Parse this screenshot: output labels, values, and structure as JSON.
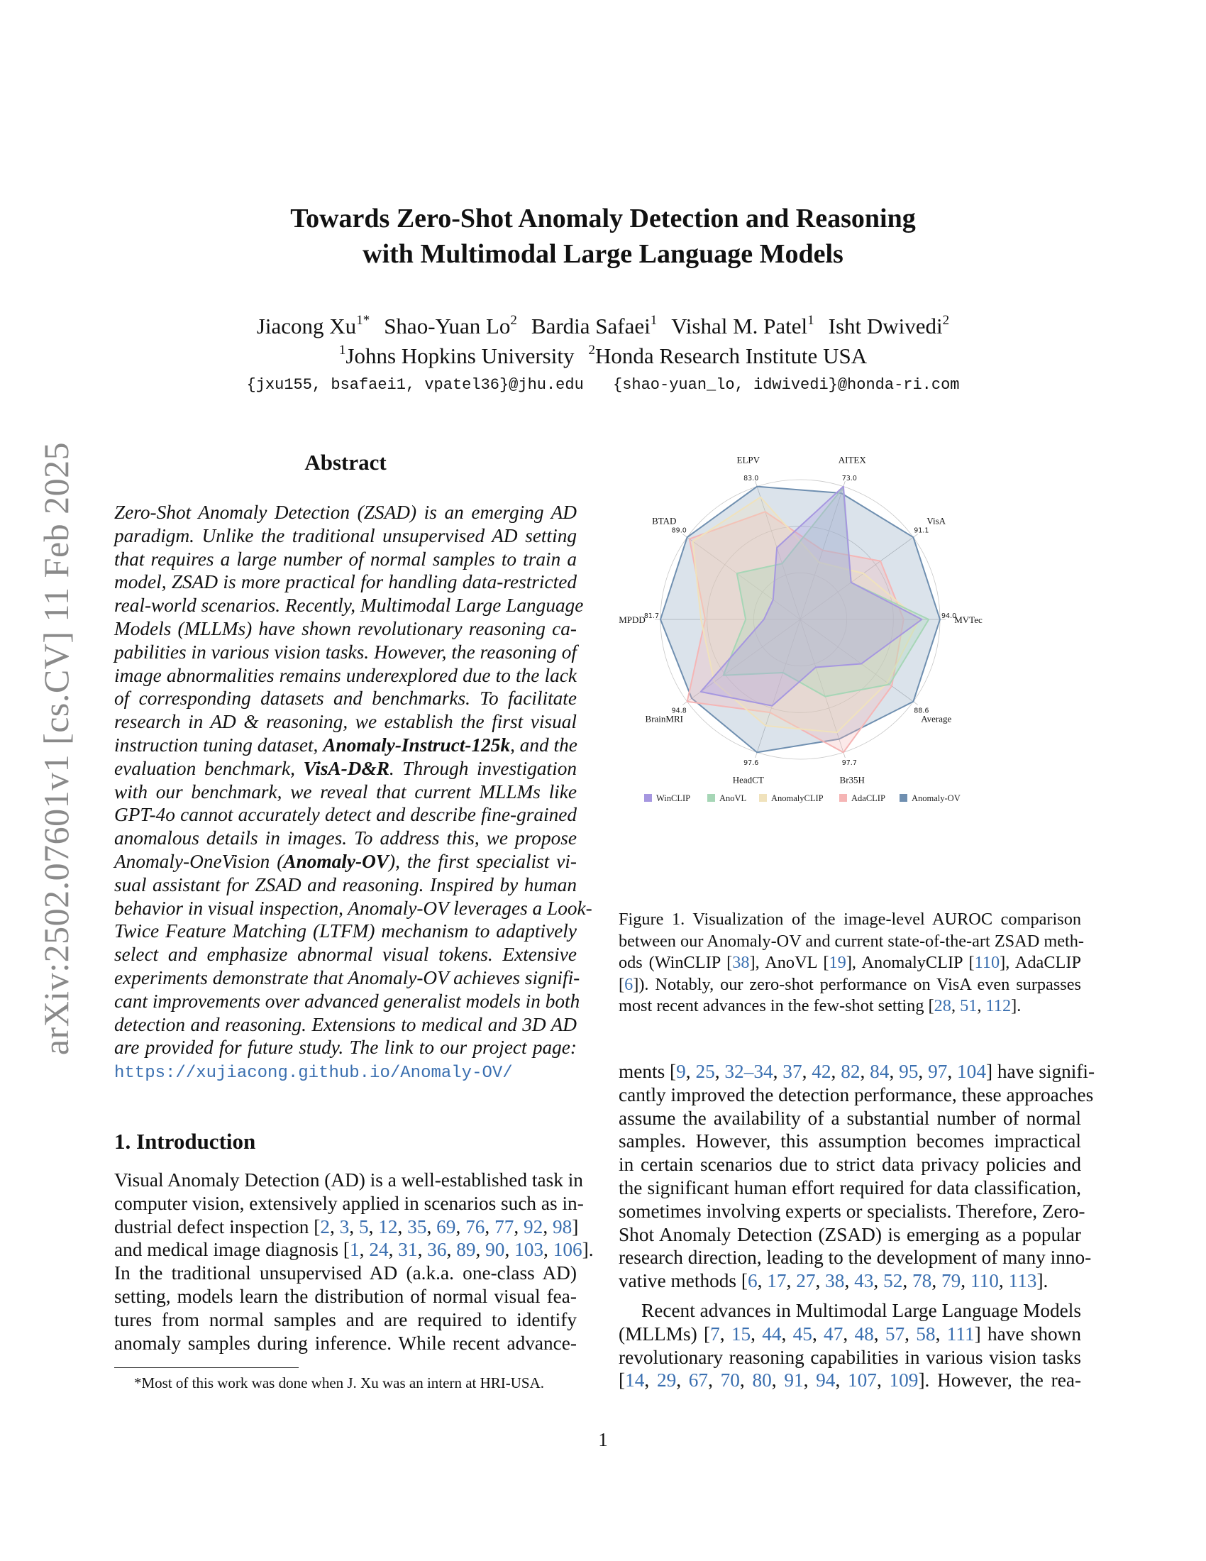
{
  "side_stamp": "arXiv:2502.07601v1  [cs.CV]  11 Feb 2025",
  "title": [
    "Towards Zero-Shot Anomaly Detection and Reasoning",
    "with Multimodal Large Language Models"
  ],
  "authors": [
    {
      "name": "Jiacong Xu",
      "sup": "1*"
    },
    {
      "name": "Shao-Yuan Lo",
      "sup": "2"
    },
    {
      "name": "Bardia Safaei",
      "sup": "1"
    },
    {
      "name": "Vishal M. Patel",
      "sup": "1"
    },
    {
      "name": "Isht Dwivedi",
      "sup": "2"
    }
  ],
  "affiliations": [
    {
      "sup": "1",
      "name": "Johns Hopkins University"
    },
    {
      "sup": "2",
      "name": "Honda Research Institute USA"
    }
  ],
  "emails": [
    "{jxu155, bsafaei1, vpatel36}@jhu.edu",
    "{shao-yuan_lo, idwivedi}@honda-ri.com"
  ],
  "abstract": {
    "heading": "Abstract",
    "lines": [
      "Zero-Shot Anomaly Detection (ZSAD) is an emerging AD",
      "paradigm. Unlike the traditional unsupervised AD setting",
      "that requires a large number of normal samples to train a",
      "model, ZSAD is more practical for handling data-restricted",
      "real-world scenarios. Recently, Multimodal Large Language",
      "Models (MLLMs) have shown revolutionary reasoning ca-",
      "pabilities in various vision tasks. However, the reasoning of",
      "image abnormalities remains underexplored due to the lack",
      "of corresponding datasets and benchmarks.  To facilitate",
      "research in AD & reasoning, we establish the first visual",
      [
        {
          "t": "instruction tuning dataset, "
        },
        {
          "t": "Anomaly-Instruct-125k",
          "b": true
        },
        {
          "t": ", and the"
        }
      ],
      [
        {
          "t": "evaluation benchmark, "
        },
        {
          "t": "VisA-D&R",
          "b": true
        },
        {
          "t": ". Through investigation"
        }
      ],
      "with our benchmark, we reveal that current MLLMs like",
      "GPT-4o cannot accurately detect and describe fine-grained",
      "anomalous details in images. To address this, we propose",
      [
        {
          "t": "Anomaly-OneVision ("
        },
        {
          "t": "Anomaly-OV",
          "b": true
        },
        {
          "t": "), the first specialist vi-"
        }
      ],
      "sual assistant for ZSAD and reasoning. Inspired by human",
      "behavior in visual inspection, Anomaly-OV leverages a Look-",
      "Twice Feature Matching (LTFM) mechanism to adaptively",
      "select and emphasize abnormal visual tokens.  Extensive",
      "experiments demonstrate that Anomaly-OV achieves signifi-",
      "cant improvements over advanced generalist models in both",
      "detection and reasoning. Extensions to medical and 3D AD",
      "are provided for future study. The link to our project page:"
    ],
    "link": "https://xujiacong.github.io/Anomaly-OV/"
  },
  "introduction": {
    "heading": "1. Introduction",
    "lines": [
      "Visual Anomaly Detection (AD) is a well-established task in",
      "computer vision, extensively applied in scenarios such as in-",
      "dustrial defect inspection [2, 3, 5, 12, 35, 69, 76, 77, 92, 98]",
      "and medical image diagnosis [1, 24, 31, 36, 89, 90, 103, 106].",
      "In the traditional unsupervised AD (a.k.a.  one-class AD)",
      "setting, models learn the distribution of normal visual fea-",
      "tures from normal samples and are required to identify",
      "anomaly samples during inference.  While recent advance-"
    ]
  },
  "footnote": "*Most of this work was done when J. Xu was an intern at HRI-USA.",
  "figure": {
    "caption_lines": [
      "Figure 1.  Visualization of the image-level AUROC comparison",
      "between our Anomaly-OV and current state-of-the-art ZSAD meth-",
      "ods (WinCLIP [38], AnoVL [19], AnomalyCLIP [110], AdaCLIP",
      "[6]). Notably, our zero-shot performance on VisA even surpasses",
      "most recent advances in the few-shot setting [28, 51, 112]."
    ]
  },
  "right_column": {
    "para1": [
      "ments [9, 25, 32–34, 37, 42, 82, 84, 95, 97, 104] have signifi-",
      "cantly improved the detection performance, these approaches",
      "assume the availability of a substantial number of normal",
      "samples.  However, this assumption becomes impractical",
      "in certain scenarios due to strict data privacy policies and",
      "the significant human effort required for data classification,",
      "sometimes involving experts or specialists. Therefore, Zero-",
      "Shot Anomaly Detection (ZSAD) is emerging as a popular",
      "research direction, leading to the development of many inno-",
      "vative methods [6, 17, 27, 38, 43, 52, 78, 79, 110, 113]."
    ],
    "para2": [
      "Recent advances in Multimodal Large Language Models",
      "(MLLMs) [7, 15, 44, 45, 47, 48, 57, 58, 111] have shown",
      "revolutionary reasoning capabilities in various vision tasks",
      "[14, 29, 67, 70, 80, 91, 94, 107, 109].  However, the rea-"
    ]
  },
  "page_number": "1",
  "chart_data": {
    "type": "radar",
    "value_scale": "fraction of each axis's outer-ring value",
    "axes": [
      {
        "name": "MVTec",
        "max_label": "94.0"
      },
      {
        "name": "VisA",
        "max_label": "91.1"
      },
      {
        "name": "AITEX",
        "max_label": "73.0"
      },
      {
        "name": "ELPV",
        "max_label": "83.0"
      },
      {
        "name": "BTAD",
        "max_label": "89.0"
      },
      {
        "name": "MPDD",
        "max_label": "81.7"
      },
      {
        "name": "BrainMRI",
        "max_label": "94.8"
      },
      {
        "name": "HeadCT",
        "max_label": "97.6"
      },
      {
        "name": "Br35H",
        "max_label": "97.7"
      },
      {
        "name": "Average",
        "max_label": "88.6"
      }
    ],
    "rings": 3,
    "legend_position": "bottom",
    "series": [
      {
        "name": "Anomaly-OV",
        "color": "#6f8fb0",
        "values": [
          1.0,
          1.0,
          0.95,
          1.0,
          1.0,
          1.0,
          0.96,
          1.0,
          0.9,
          1.0
        ]
      },
      {
        "name": "AdaCLIP",
        "color": "#f5b5b5",
        "values": [
          0.74,
          0.71,
          0.52,
          0.81,
          0.98,
          0.68,
          1.0,
          0.7,
          1.0,
          0.81
        ]
      },
      {
        "name": "AnomalyCLIP",
        "color": "#f0e2bc",
        "values": [
          0.85,
          0.56,
          0.43,
          0.92,
          0.95,
          0.71,
          0.76,
          0.8,
          0.85,
          0.77
        ]
      },
      {
        "name": "AnoVL",
        "color": "#a6d6b6",
        "values": [
          0.92,
          0.45,
          0.99,
          0.42,
          0.56,
          0.39,
          0.68,
          0.4,
          0.58,
          0.79
        ]
      },
      {
        "name": "WinCLIP",
        "color": "#a697e0",
        "values": [
          0.87,
          0.45,
          1.0,
          0.54,
          0.24,
          0.26,
          0.88,
          0.65,
          0.36,
          0.54
        ]
      }
    ],
    "legend_order": [
      "WinCLIP",
      "AnoVL",
      "AnomalyCLIP",
      "AdaCLIP",
      "Anomaly-OV"
    ]
  }
}
